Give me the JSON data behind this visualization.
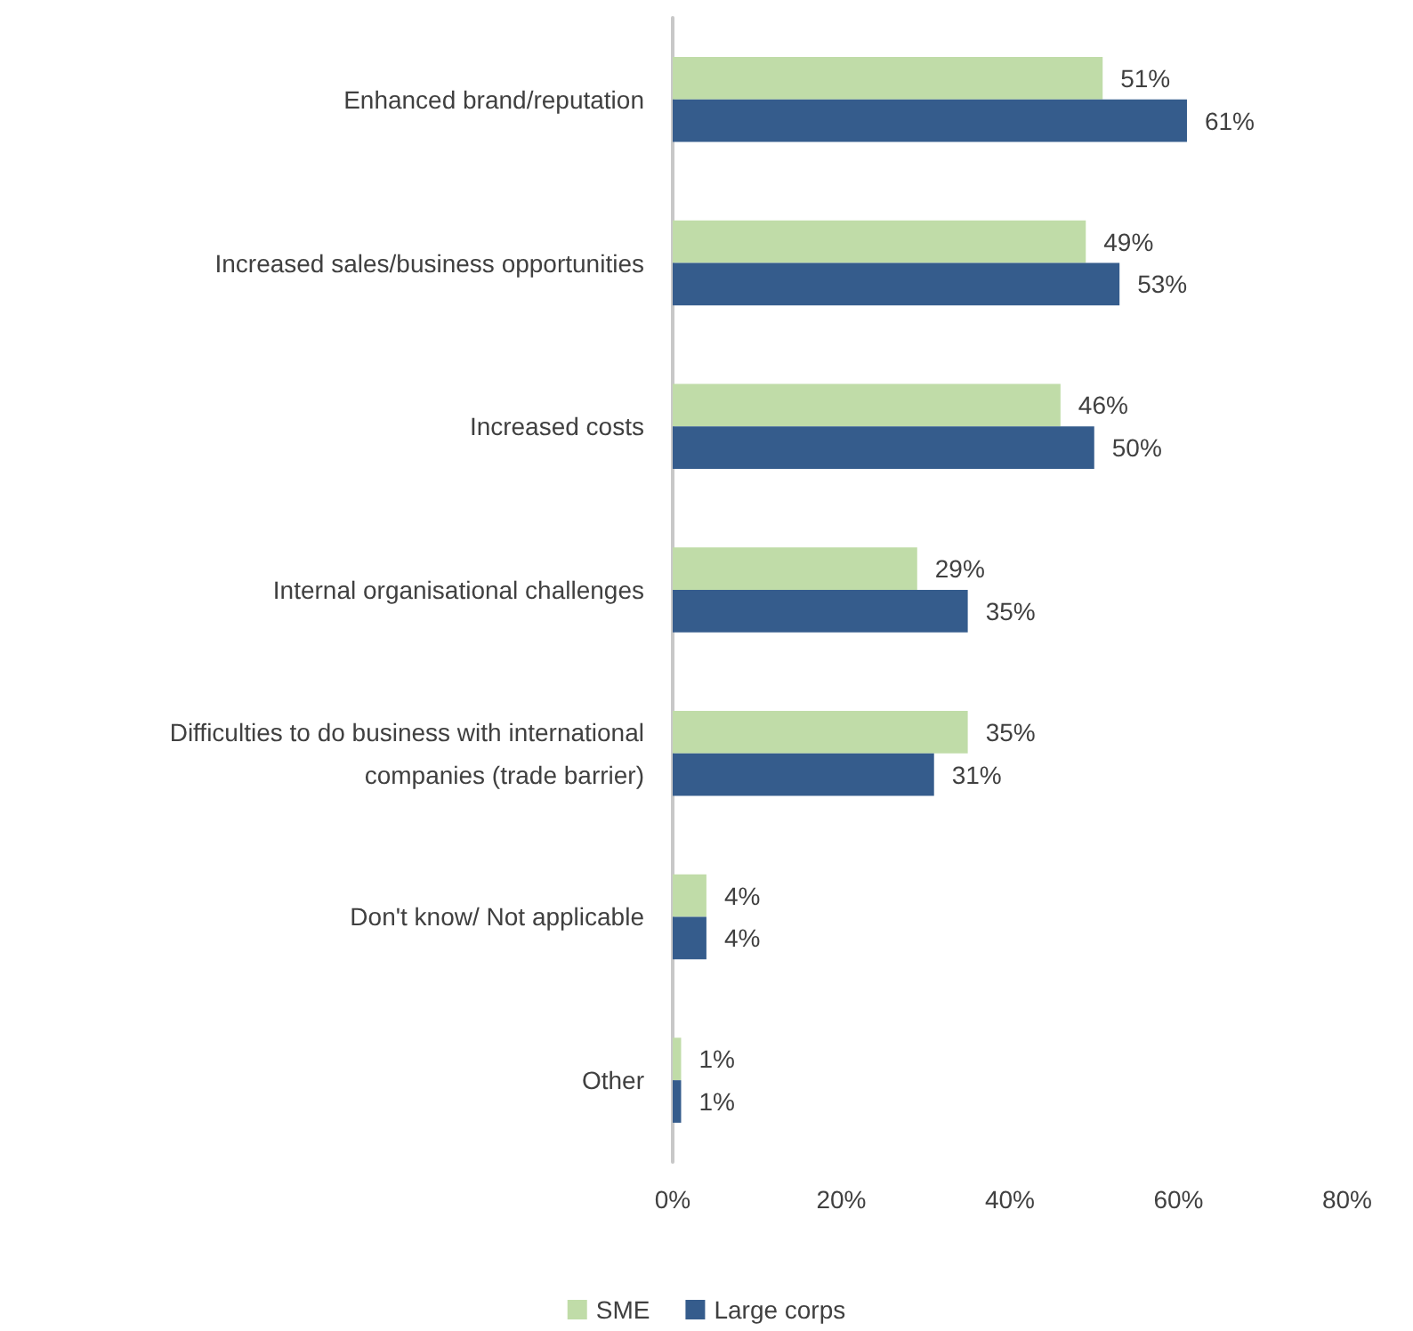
{
  "chart_data": {
    "type": "bar",
    "orientation": "horizontal",
    "categories": [
      "Enhanced brand/reputation",
      "Increased sales/business opportunities",
      "Increased costs",
      "Internal organisational challenges",
      "Difficulties to do business with international\ncompanies (trade barrier)",
      "Don't know/ Not applicable",
      "Other"
    ],
    "series": [
      {
        "name": "SME",
        "color": "#c0dca8",
        "values": [
          51,
          49,
          46,
          29,
          35,
          4,
          1
        ],
        "value_labels": [
          "51%",
          "49%",
          "46%",
          "29%",
          "35%",
          "4%",
          "1%"
        ]
      },
      {
        "name": "Large corps",
        "color": "#355c8c",
        "values": [
          61,
          53,
          50,
          35,
          31,
          4,
          1
        ],
        "value_labels": [
          "61%",
          "53%",
          "50%",
          "35%",
          "31%",
          "4%",
          "1%"
        ]
      }
    ],
    "xlim": [
      0,
      80
    ],
    "xticks": [
      {
        "value": 0,
        "label": "0%"
      },
      {
        "value": 20,
        "label": "20%"
      },
      {
        "value": 40,
        "label": "40%"
      },
      {
        "value": 60,
        "label": "60%"
      },
      {
        "value": 80,
        "label": "80%"
      }
    ],
    "grid": false,
    "legend": "bottom"
  }
}
